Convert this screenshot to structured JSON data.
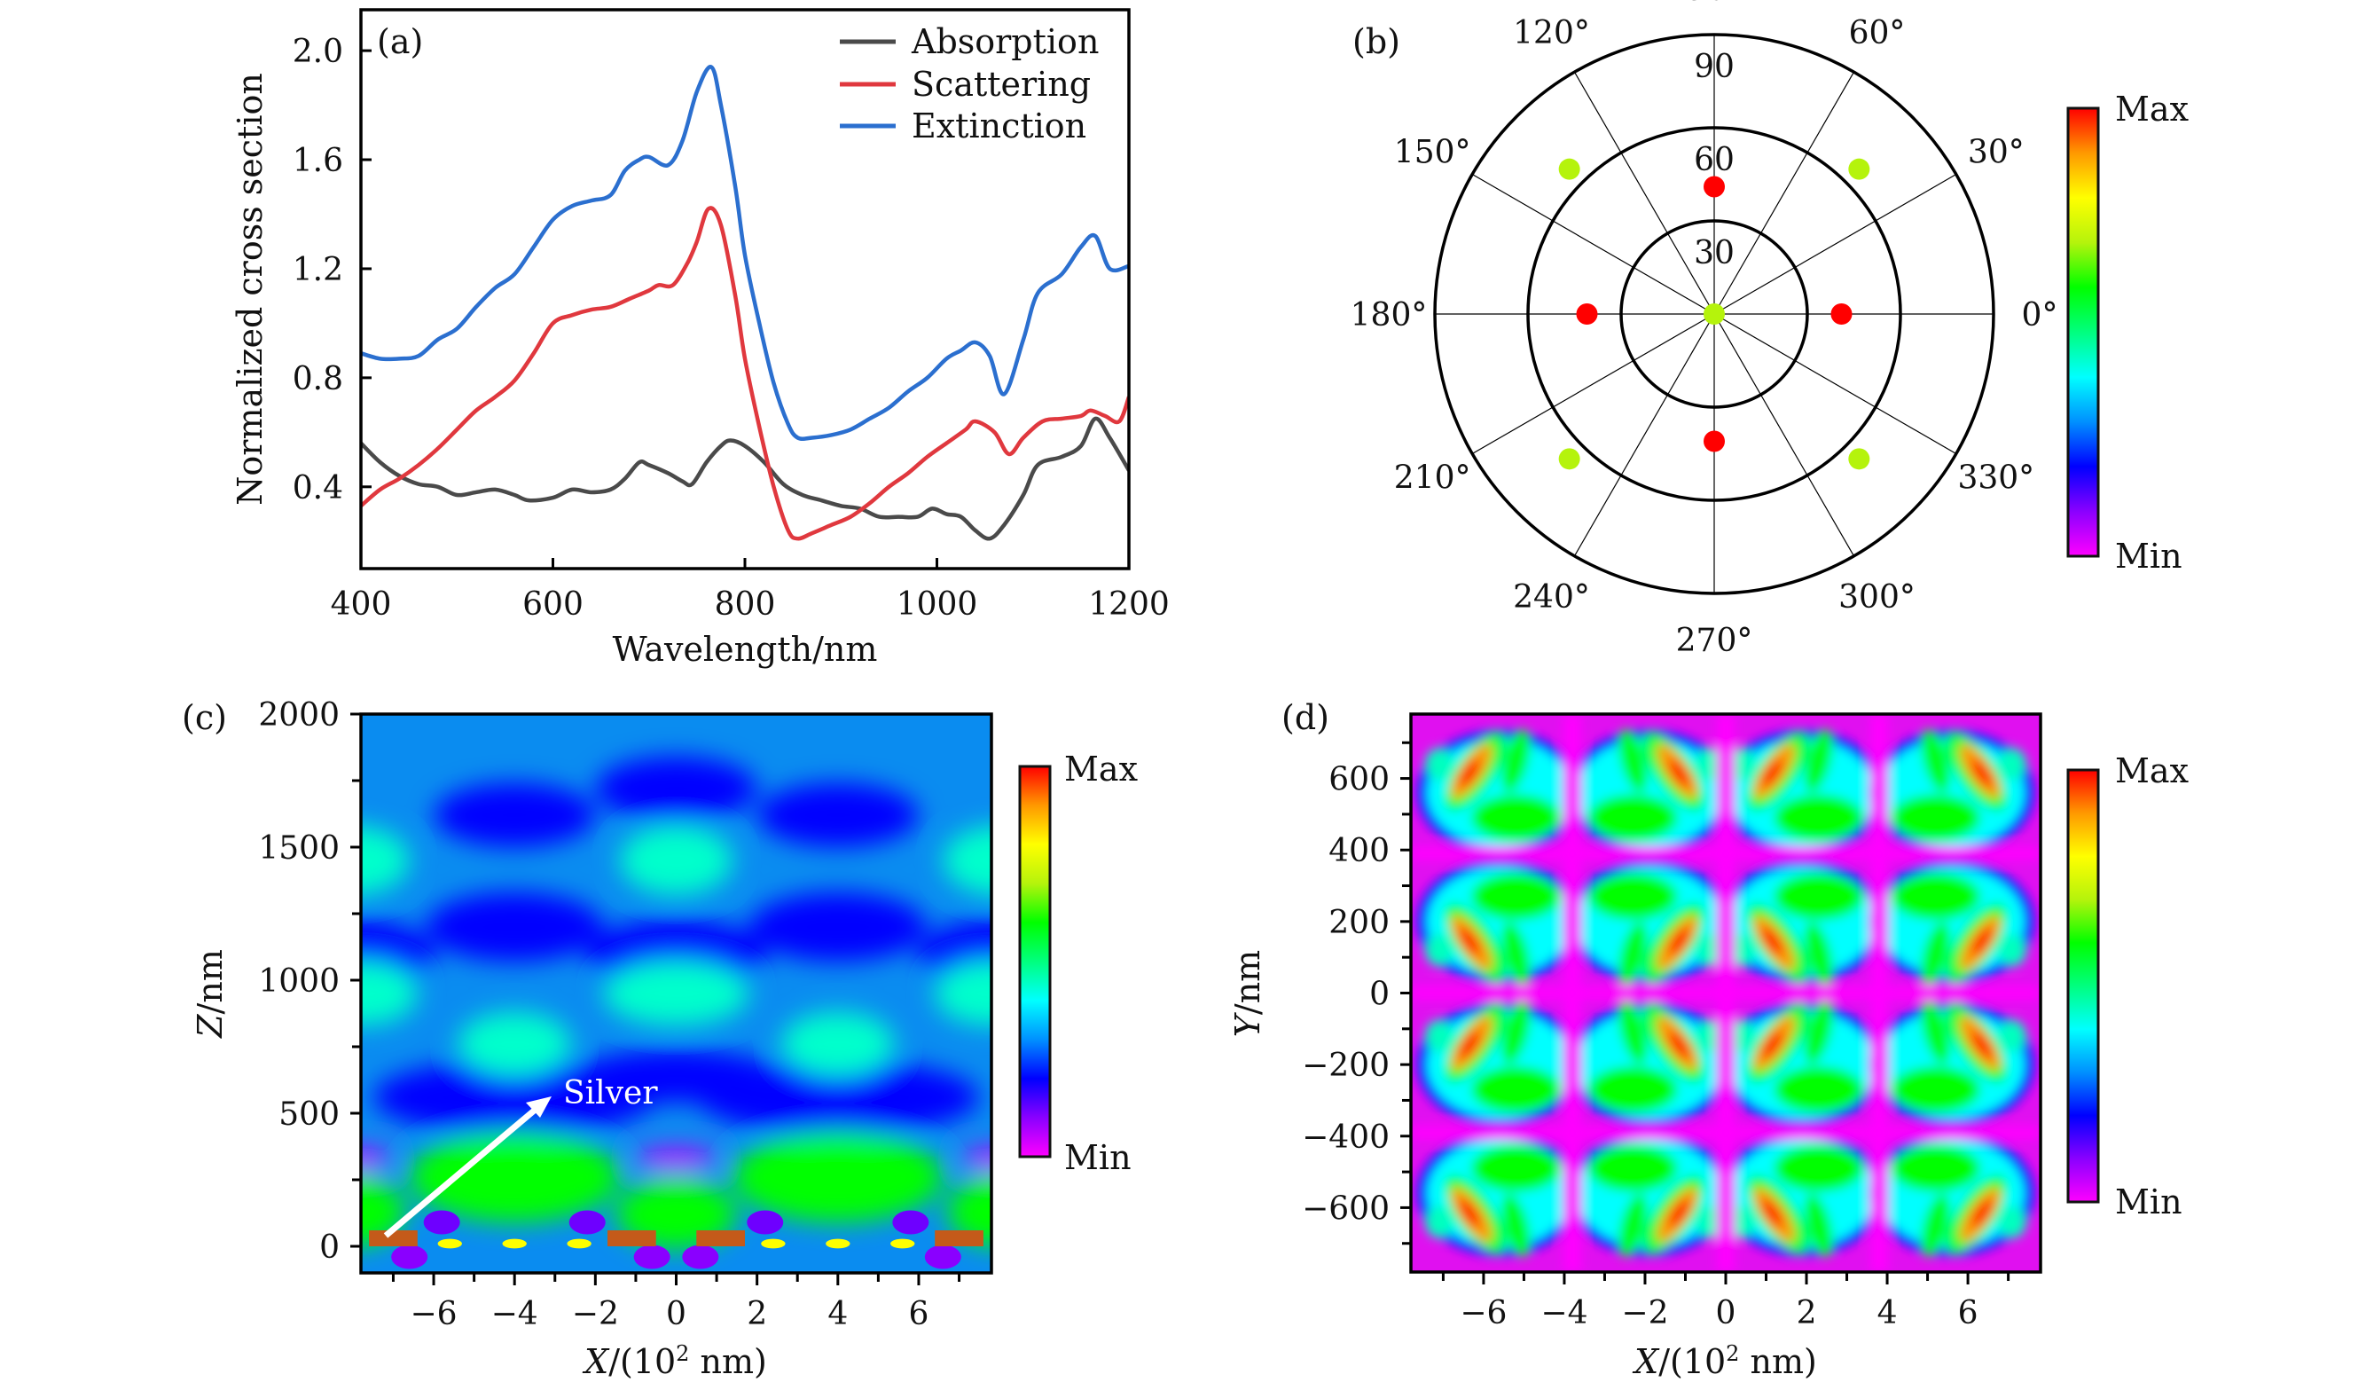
{
  "figure": {
    "panels": [
      "(a)",
      "(b)",
      "(c)",
      "(d)"
    ]
  },
  "chart_data": [
    {
      "id": "a",
      "type": "line",
      "tag": "(a)",
      "title": "",
      "xlabel": "Wavelength/nm",
      "ylabel": "Normalized cross section",
      "xlim": [
        400,
        1200
      ],
      "ylim": [
        0.1,
        2.15
      ],
      "xticks": [
        400,
        600,
        800,
        1000,
        1200
      ],
      "xtick_labels": [
        "400",
        "600",
        "800",
        "1000",
        "1200"
      ],
      "yticks": [
        0.4,
        0.8,
        1.2,
        1.6,
        2.0
      ],
      "ytick_labels": [
        "0.4",
        "0.8",
        "1.2",
        "1.6",
        "2.0"
      ],
      "grid": false,
      "legend_position": "top-right",
      "series": [
        {
          "name": "Absorption",
          "color": "#4a4a4a",
          "x": [
            400,
            420,
            440,
            460,
            480,
            500,
            520,
            540,
            560,
            575,
            600,
            620,
            640,
            660,
            675,
            690,
            700,
            720,
            735,
            745,
            760,
            775,
            785,
            800,
            820,
            840,
            860,
            880,
            900,
            920,
            940,
            960,
            980,
            995,
            1010,
            1025,
            1040,
            1055,
            1070,
            1090,
            1105,
            1130,
            1150,
            1165,
            1180,
            1200
          ],
          "values": [
            0.56,
            0.49,
            0.44,
            0.41,
            0.4,
            0.37,
            0.38,
            0.39,
            0.37,
            0.35,
            0.36,
            0.39,
            0.38,
            0.39,
            0.43,
            0.49,
            0.48,
            0.45,
            0.42,
            0.41,
            0.49,
            0.55,
            0.57,
            0.55,
            0.49,
            0.41,
            0.37,
            0.35,
            0.33,
            0.32,
            0.29,
            0.29,
            0.29,
            0.32,
            0.3,
            0.29,
            0.24,
            0.21,
            0.26,
            0.37,
            0.48,
            0.51,
            0.55,
            0.65,
            0.58,
            0.46
          ]
        },
        {
          "name": "Scattering",
          "color": "#e0383e",
          "x": [
            400,
            420,
            440,
            460,
            480,
            500,
            520,
            540,
            560,
            580,
            600,
            620,
            640,
            660,
            680,
            700,
            710,
            725,
            740,
            750,
            762,
            775,
            790,
            800,
            815,
            830,
            845,
            855,
            870,
            890,
            910,
            930,
            950,
            970,
            990,
            1010,
            1030,
            1040,
            1060,
            1075,
            1090,
            1110,
            1130,
            1150,
            1160,
            1175,
            1190,
            1200
          ],
          "values": [
            0.33,
            0.39,
            0.43,
            0.48,
            0.54,
            0.61,
            0.68,
            0.73,
            0.79,
            0.89,
            1.0,
            1.03,
            1.05,
            1.06,
            1.09,
            1.12,
            1.14,
            1.14,
            1.22,
            1.3,
            1.42,
            1.36,
            1.1,
            0.87,
            0.62,
            0.4,
            0.24,
            0.21,
            0.23,
            0.26,
            0.29,
            0.34,
            0.4,
            0.45,
            0.51,
            0.56,
            0.61,
            0.64,
            0.6,
            0.52,
            0.58,
            0.64,
            0.65,
            0.66,
            0.68,
            0.66,
            0.64,
            0.73
          ]
        },
        {
          "name": "Extinction",
          "color": "#2b6fcf",
          "x": [
            400,
            420,
            440,
            460,
            480,
            500,
            520,
            540,
            560,
            580,
            600,
            620,
            640,
            660,
            675,
            690,
            700,
            720,
            735,
            750,
            765,
            775,
            790,
            800,
            815,
            830,
            845,
            855,
            870,
            890,
            910,
            930,
            950,
            970,
            990,
            1010,
            1025,
            1040,
            1055,
            1070,
            1090,
            1105,
            1130,
            1150,
            1165,
            1180,
            1200
          ],
          "values": [
            0.89,
            0.87,
            0.87,
            0.88,
            0.94,
            0.98,
            1.06,
            1.13,
            1.18,
            1.28,
            1.38,
            1.43,
            1.45,
            1.47,
            1.56,
            1.6,
            1.61,
            1.58,
            1.67,
            1.85,
            1.94,
            1.8,
            1.5,
            1.25,
            1.0,
            0.78,
            0.63,
            0.58,
            0.58,
            0.59,
            0.61,
            0.65,
            0.69,
            0.75,
            0.8,
            0.87,
            0.9,
            0.93,
            0.88,
            0.74,
            0.94,
            1.11,
            1.18,
            1.28,
            1.32,
            1.2,
            1.21
          ]
        }
      ]
    },
    {
      "id": "b",
      "type": "scatter",
      "subtype": "polar",
      "tag": "(b)",
      "title": "",
      "radial_ticks": [
        30,
        60,
        90
      ],
      "radial_tick_labels": [
        "30",
        "60",
        "90"
      ],
      "rlim": [
        0,
        90
      ],
      "angle_ticks": [
        0,
        30,
        60,
        90,
        120,
        150,
        180,
        210,
        240,
        270,
        300,
        330
      ],
      "angle_tick_labels": [
        "0°",
        "30°",
        "60°",
        "90°",
        "120°",
        "150°",
        "180°",
        "210°",
        "240°",
        "270°",
        "300°",
        "330°"
      ],
      "grid": true,
      "points": [
        {
          "angle": 0,
          "r": 0,
          "level": 0.68,
          "color": "#b5f30c"
        },
        {
          "angle": 0,
          "r": 41,
          "level": 1.0,
          "color": "#ff0000"
        },
        {
          "angle": 90,
          "r": 41,
          "level": 1.0,
          "color": "#ff0000"
        },
        {
          "angle": 180,
          "r": 41,
          "level": 1.0,
          "color": "#ff0000"
        },
        {
          "angle": 270,
          "r": 41,
          "level": 1.0,
          "color": "#ff0000"
        },
        {
          "angle": 45,
          "r": 66,
          "level": 0.68,
          "color": "#b5f30c"
        },
        {
          "angle": 135,
          "r": 66,
          "level": 0.68,
          "color": "#b5f30c"
        },
        {
          "angle": 225,
          "r": 66,
          "level": 0.68,
          "color": "#b5f30c"
        },
        {
          "angle": 315,
          "r": 66,
          "level": 0.68,
          "color": "#b5f30c"
        }
      ],
      "colorbar": {
        "max_label": "Max",
        "min_label": "Min"
      }
    },
    {
      "id": "c",
      "type": "heatmap",
      "tag": "(c)",
      "title": "",
      "xlabel_main": "X",
      "xlabel_rest": "/(10",
      "xlabel_sup": "2",
      "xlabel_tail": " nm)",
      "ylabel_main": "Z",
      "ylabel_rest": "/nm",
      "xlim": [
        -7.8,
        7.8
      ],
      "ylim": [
        -100,
        2000
      ],
      "xticks": [
        -6,
        -4,
        -2,
        0,
        2,
        4,
        6
      ],
      "xtick_labels": [
        "−6",
        "−4",
        "−2",
        "0",
        "2",
        "4",
        "6"
      ],
      "yticks": [
        0,
        500,
        1000,
        1500,
        2000
      ],
      "ytick_labels": [
        "0",
        "500",
        "1000",
        "1500",
        "2000"
      ],
      "annotation": {
        "text": "Silver",
        "arrow_from": [
          -7.2,
          30
        ],
        "arrow_to": [
          -3.1,
          560
        ]
      },
      "silver_blocks": [
        {
          "x0": -7.6,
          "x1": -6.4,
          "z0": 0,
          "z1": 60
        },
        {
          "x0": -1.7,
          "x1": -0.5,
          "z0": 0,
          "z1": 60
        },
        {
          "x0": 0.5,
          "x1": 1.7,
          "z0": 0,
          "z1": 60
        },
        {
          "x0": 6.4,
          "x1": 7.6,
          "z0": 0,
          "z1": 60
        }
      ],
      "silver_color": "#c45a1a",
      "colorbar": {
        "max_label": "Max",
        "min_label": "Min"
      }
    },
    {
      "id": "d",
      "type": "heatmap",
      "tag": "(d)",
      "title": "",
      "xlabel_main": "X",
      "xlabel_rest": "/(10",
      "xlabel_sup": "2",
      "xlabel_tail": " nm)",
      "ylabel_main": "Y",
      "ylabel_rest": "/nm",
      "xlim": [
        -7.8,
        7.8
      ],
      "ylim": [
        -780,
        780
      ],
      "xticks": [
        -6,
        -4,
        -2,
        0,
        2,
        4,
        6
      ],
      "xtick_labels": [
        "−6",
        "−4",
        "−2",
        "0",
        "2",
        "4",
        "6"
      ],
      "yticks": [
        -600,
        -400,
        -200,
        0,
        200,
        400,
        600
      ],
      "ytick_labels": [
        "−600",
        "−400",
        "−200",
        "0",
        "200",
        "400",
        "600"
      ],
      "colorbar": {
        "max_label": "Max",
        "min_label": "Min"
      }
    }
  ],
  "colormap": [
    "#ff00ff",
    "#8a00ff",
    "#0000ff",
    "#0090ff",
    "#00ffff",
    "#00ff7f",
    "#00ff00",
    "#b5f30c",
    "#ffff00",
    "#ff9900",
    "#ff0000"
  ]
}
